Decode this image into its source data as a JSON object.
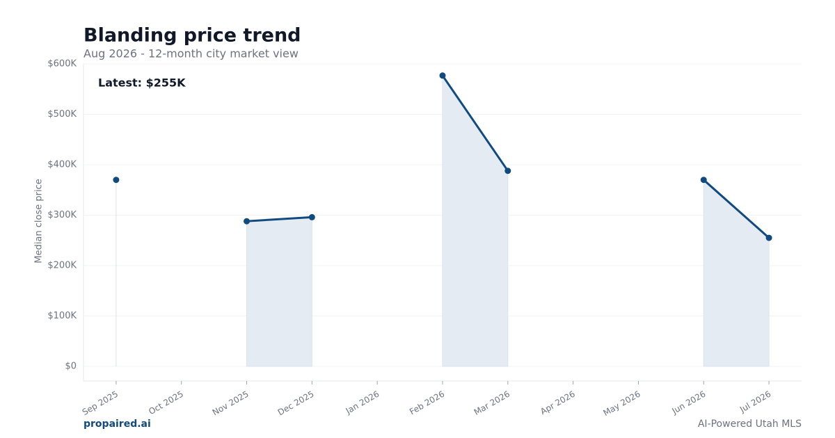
{
  "chart_data": {
    "type": "line",
    "title": "Blanding price trend",
    "subtitle": "Aug 2026 - 12-month city market view",
    "y_label": "Median close price",
    "annotation": "Latest: $255K",
    "categories": [
      "Sep 2025",
      "Oct 2025",
      "Nov 2025",
      "Dec 2025",
      "Jan 2026",
      "Feb 2026",
      "Mar 2026",
      "Apr 2026",
      "May 2026",
      "Jun 2026",
      "Jul 2026"
    ],
    "values": [
      370000,
      null,
      288000,
      296000,
      null,
      577000,
      388000,
      null,
      null,
      370000,
      255000
    ],
    "color": "#114a7e",
    "fill_color": "#e5ebf2",
    "ylim": [
      -29000,
      600000
    ],
    "yticks": [
      {
        "value": 0,
        "label": "$0"
      },
      {
        "value": 100000,
        "label": "$100K"
      },
      {
        "value": 200000,
        "label": "$200K"
      },
      {
        "value": 300000,
        "label": "$300K"
      },
      {
        "value": 400000,
        "label": "$400K"
      },
      {
        "value": 500000,
        "label": "$500K"
      },
      {
        "value": 600000,
        "label": "$600K"
      }
    ],
    "grid": true,
    "footer_left": "propaired.ai",
    "footer_right": "AI-Powered Utah MLS"
  }
}
